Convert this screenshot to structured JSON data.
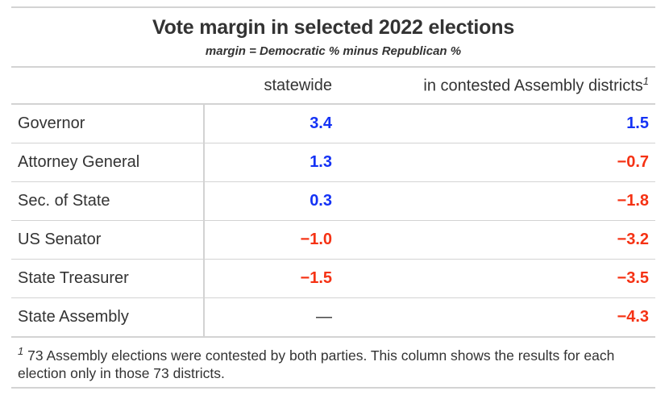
{
  "title": "Vote margin in selected 2022 elections",
  "subtitle": "margin = Democratic % minus Republican %",
  "colors": {
    "dem": "#1432f5",
    "rep": "#f53214",
    "neutral": "#333333"
  },
  "columns": {
    "stub": "",
    "statewide": "statewide",
    "contested": "in contested Assembly districts",
    "contested_mark": "1"
  },
  "rows": [
    {
      "office": "Governor",
      "statewide": "3.4",
      "statewide_party": "dem",
      "contested": "1.5",
      "contested_party": "dem"
    },
    {
      "office": "Attorney General",
      "statewide": "1.3",
      "statewide_party": "dem",
      "contested": "−0.7",
      "contested_party": "rep"
    },
    {
      "office": "Sec. of State",
      "statewide": "0.3",
      "statewide_party": "dem",
      "contested": "−1.8",
      "contested_party": "rep"
    },
    {
      "office": "US Senator",
      "statewide": "−1.0",
      "statewide_party": "rep",
      "contested": "−3.2",
      "contested_party": "rep"
    },
    {
      "office": "State Treasurer",
      "statewide": "−1.5",
      "statewide_party": "rep",
      "contested": "−3.5",
      "contested_party": "rep"
    },
    {
      "office": "State Assembly",
      "statewide": "—",
      "statewide_party": "neutral",
      "contested": "−4.3",
      "contested_party": "rep"
    }
  ],
  "footnote": {
    "mark": "1",
    "text": " 73 Assembly elections were contested by both parties. This column shows the results for each election only in those 73 districts."
  }
}
